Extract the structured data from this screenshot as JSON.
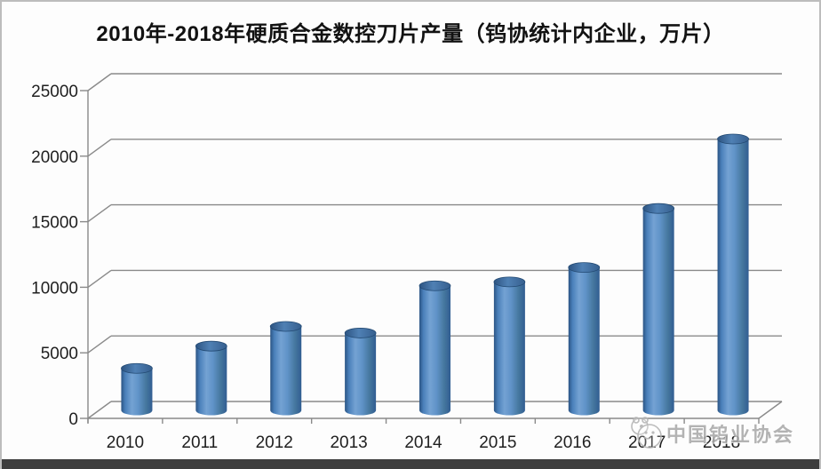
{
  "title": "2010年-2018年硬质合金数控刀片产量（钨协统计内企业，万片）",
  "watermark": {
    "text": "中国钨业协会",
    "icon": "association-mascot-icon",
    "color": "#a9a9a9"
  },
  "chart_data": {
    "type": "bar",
    "style": "3d-cylinder",
    "title": "2010年-2018年硬质合金数控刀片产量（钨协统计内企业，万片）",
    "categories": [
      "2010",
      "2011",
      "2012",
      "2013",
      "2014",
      "2015",
      "2016",
      "2017",
      "2018"
    ],
    "values": [
      3200,
      4900,
      6400,
      5900,
      9500,
      9800,
      10900,
      15400,
      20700
    ],
    "unit": "万片",
    "ylim": [
      0,
      25000
    ],
    "ytick_step": 5000,
    "yticks": [
      0,
      5000,
      10000,
      15000,
      20000,
      25000
    ],
    "grid": true,
    "legend": false,
    "bar_color": "#4f81bd",
    "bar_edge_dark": "#2b5484",
    "bar_highlight": "#74a2d3",
    "gridline_color": "#8a8a8a",
    "label_color": "#1f1f1f",
    "label_font_size": 19
  }
}
